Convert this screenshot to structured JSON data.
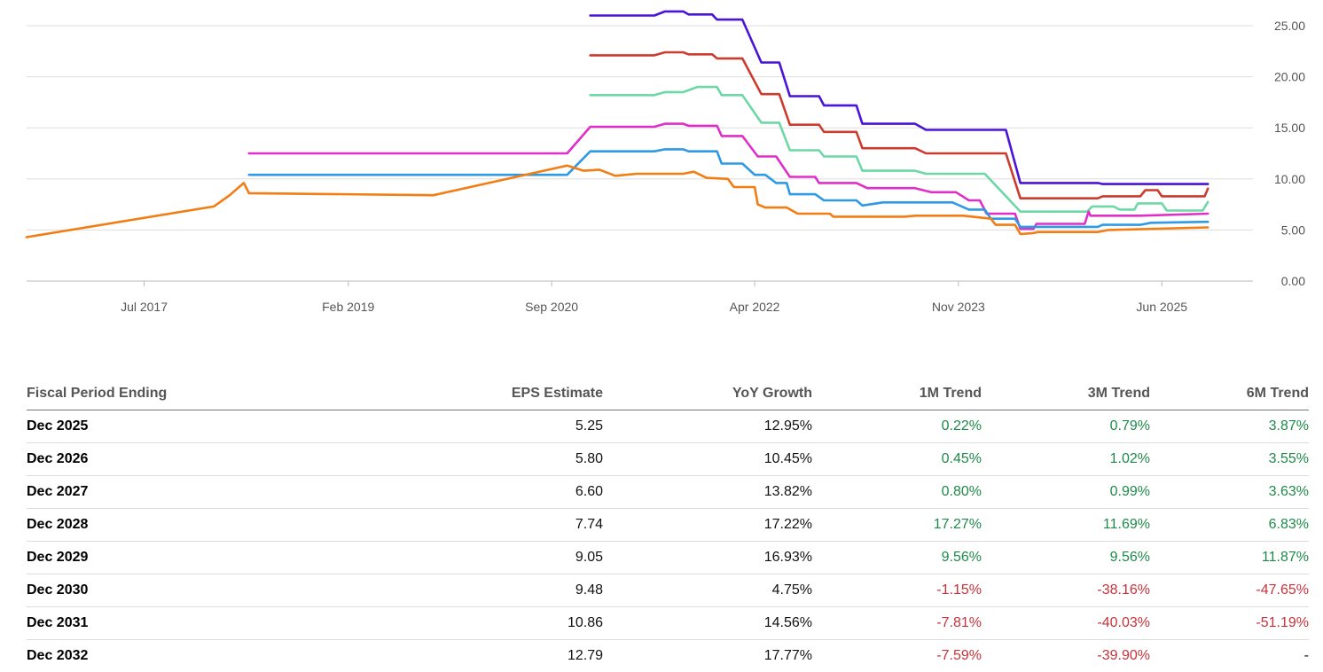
{
  "chart_data": {
    "type": "line",
    "x_tick_labels": [
      "Jul 2017",
      "Feb 2019",
      "Sep 2020",
      "Apr 2022",
      "Nov 2023",
      "Jun 2025"
    ],
    "y_tick_labels": [
      "0.00",
      "5.00",
      "10.00",
      "15.00",
      "20.00",
      "25.00"
    ],
    "ylim": [
      0,
      26.5
    ],
    "xlim": [
      "2016-08-01",
      "2026-02-15"
    ],
    "grid": true,
    "y_axis_position": "right",
    "series": [
      {
        "color": "#4a14d8",
        "points": [
          [
            "2020-12-20",
            26.0
          ],
          [
            "2021-06-20",
            26.0
          ],
          [
            "2021-07-20",
            26.4
          ],
          [
            "2021-09-10",
            26.4
          ],
          [
            "2021-09-25",
            26.1
          ],
          [
            "2021-12-01",
            26.1
          ],
          [
            "2021-12-15",
            25.6
          ],
          [
            "2022-02-25",
            25.6
          ],
          [
            "2022-04-20",
            21.4
          ],
          [
            "2022-06-10",
            21.4
          ],
          [
            "2022-07-10",
            18.1
          ],
          [
            "2022-10-01",
            18.1
          ],
          [
            "2022-10-15",
            17.2
          ],
          [
            "2023-01-15",
            17.2
          ],
          [
            "2023-02-01",
            15.4
          ],
          [
            "2023-07-01",
            15.4
          ],
          [
            "2023-08-01",
            14.8
          ],
          [
            "2024-03-15",
            14.8
          ],
          [
            "2024-04-25",
            9.6
          ],
          [
            "2024-12-01",
            9.6
          ],
          [
            "2024-12-15",
            9.5
          ],
          [
            "2025-10-10",
            9.5
          ]
        ]
      },
      {
        "color": "#cc3c2e",
        "points": [
          [
            "2020-12-20",
            22.1
          ],
          [
            "2021-06-20",
            22.1
          ],
          [
            "2021-07-20",
            22.4
          ],
          [
            "2021-09-10",
            22.4
          ],
          [
            "2021-09-25",
            22.2
          ],
          [
            "2021-12-01",
            22.2
          ],
          [
            "2021-12-15",
            21.8
          ],
          [
            "2022-02-25",
            21.8
          ],
          [
            "2022-04-20",
            18.3
          ],
          [
            "2022-06-10",
            18.3
          ],
          [
            "2022-07-10",
            15.3
          ],
          [
            "2022-10-01",
            15.3
          ],
          [
            "2022-10-15",
            14.6
          ],
          [
            "2023-01-15",
            14.6
          ],
          [
            "2023-02-01",
            13.0
          ],
          [
            "2023-07-01",
            13.0
          ],
          [
            "2023-08-01",
            12.5
          ],
          [
            "2024-03-15",
            12.5
          ],
          [
            "2024-04-25",
            8.1
          ],
          [
            "2024-12-01",
            8.1
          ],
          [
            "2024-12-15",
            8.3
          ],
          [
            "2025-04-01",
            8.3
          ],
          [
            "2025-04-15",
            8.9
          ],
          [
            "2025-05-20",
            8.9
          ],
          [
            "2025-06-01",
            8.3
          ],
          [
            "2025-10-01",
            8.3
          ],
          [
            "2025-10-10",
            9.05
          ]
        ]
      },
      {
        "color": "#6dd8a6",
        "points": [
          [
            "2020-12-20",
            18.2
          ],
          [
            "2021-06-20",
            18.2
          ],
          [
            "2021-07-20",
            18.5
          ],
          [
            "2021-09-10",
            18.5
          ],
          [
            "2021-10-20",
            19.0
          ],
          [
            "2021-12-15",
            19.0
          ],
          [
            "2021-12-28",
            18.2
          ],
          [
            "2022-02-25",
            18.2
          ],
          [
            "2022-04-20",
            15.5
          ],
          [
            "2022-06-10",
            15.5
          ],
          [
            "2022-07-10",
            12.8
          ],
          [
            "2022-10-01",
            12.8
          ],
          [
            "2022-10-15",
            12.2
          ],
          [
            "2023-01-15",
            12.2
          ],
          [
            "2023-02-01",
            10.8
          ],
          [
            "2023-07-01",
            10.8
          ],
          [
            "2023-08-01",
            10.5
          ],
          [
            "2024-01-15",
            10.5
          ],
          [
            "2024-04-25",
            6.8
          ],
          [
            "2024-11-01",
            6.8
          ],
          [
            "2024-11-15",
            7.3
          ],
          [
            "2025-01-15",
            7.3
          ],
          [
            "2025-02-01",
            7.0
          ],
          [
            "2025-03-15",
            7.0
          ],
          [
            "2025-03-25",
            7.6
          ],
          [
            "2025-06-01",
            7.6
          ],
          [
            "2025-06-15",
            6.9
          ],
          [
            "2025-09-25",
            6.9
          ],
          [
            "2025-10-10",
            7.74
          ]
        ]
      },
      {
        "color": "#e02ec8",
        "points": [
          [
            "2018-04-25",
            12.5
          ],
          [
            "2020-10-15",
            12.5
          ],
          [
            "2020-12-20",
            15.1
          ],
          [
            "2021-06-20",
            15.1
          ],
          [
            "2021-07-20",
            15.4
          ],
          [
            "2021-09-10",
            15.4
          ],
          [
            "2021-09-25",
            15.2
          ],
          [
            "2021-12-15",
            15.2
          ],
          [
            "2021-12-28",
            14.2
          ],
          [
            "2022-02-25",
            14.2
          ],
          [
            "2022-04-10",
            12.2
          ],
          [
            "2022-06-01",
            12.2
          ],
          [
            "2022-07-10",
            10.2
          ],
          [
            "2022-09-20",
            10.2
          ],
          [
            "2022-10-01",
            9.6
          ],
          [
            "2023-01-15",
            9.6
          ],
          [
            "2023-02-15",
            9.1
          ],
          [
            "2023-07-01",
            9.1
          ],
          [
            "2023-08-15",
            8.7
          ],
          [
            "2023-10-25",
            8.7
          ],
          [
            "2023-12-01",
            7.9
          ],
          [
            "2024-01-01",
            7.9
          ],
          [
            "2024-01-20",
            6.6
          ],
          [
            "2024-04-10",
            6.6
          ],
          [
            "2024-04-25",
            5.1
          ],
          [
            "2024-06-01",
            5.1
          ],
          [
            "2024-06-10",
            5.6
          ],
          [
            "2024-10-25",
            5.6
          ],
          [
            "2024-11-05",
            6.8
          ],
          [
            "2024-11-10",
            6.4
          ],
          [
            "2025-04-01",
            6.4
          ],
          [
            "2025-10-10",
            6.6
          ]
        ]
      },
      {
        "color": "#2e9ae6",
        "points": [
          [
            "2018-04-25",
            10.4
          ],
          [
            "2020-10-15",
            10.4
          ],
          [
            "2020-12-20",
            12.7
          ],
          [
            "2021-06-20",
            12.7
          ],
          [
            "2021-07-20",
            12.9
          ],
          [
            "2021-09-10",
            12.9
          ],
          [
            "2021-09-25",
            12.7
          ],
          [
            "2021-12-15",
            12.7
          ],
          [
            "2021-12-28",
            11.5
          ],
          [
            "2022-02-25",
            11.5
          ],
          [
            "2022-04-01",
            10.4
          ],
          [
            "2022-05-01",
            10.4
          ],
          [
            "2022-06-01",
            9.6
          ],
          [
            "2022-07-01",
            9.6
          ],
          [
            "2022-07-10",
            8.5
          ],
          [
            "2022-09-20",
            8.5
          ],
          [
            "2022-10-15",
            7.9
          ],
          [
            "2023-01-15",
            7.9
          ],
          [
            "2023-02-01",
            7.4
          ],
          [
            "2023-04-01",
            7.7
          ],
          [
            "2023-10-15",
            7.7
          ],
          [
            "2023-12-01",
            7.0
          ],
          [
            "2024-01-15",
            7.0
          ],
          [
            "2024-02-01",
            6.1
          ],
          [
            "2024-04-10",
            6.1
          ],
          [
            "2024-04-25",
            5.3
          ],
          [
            "2024-12-01",
            5.3
          ],
          [
            "2024-12-15",
            5.5
          ],
          [
            "2025-04-01",
            5.5
          ],
          [
            "2025-05-01",
            5.7
          ],
          [
            "2025-10-10",
            5.8
          ]
        ]
      },
      {
        "color": "#f27d12",
        "points": [
          [
            "2016-08-01",
            4.3
          ],
          [
            "2018-01-15",
            7.3
          ],
          [
            "2018-03-01",
            8.4
          ],
          [
            "2018-04-10",
            9.6
          ],
          [
            "2018-04-25",
            8.6
          ],
          [
            "2019-10-01",
            8.4
          ],
          [
            "2020-10-15",
            11.3
          ],
          [
            "2020-12-01",
            10.8
          ],
          [
            "2021-01-15",
            10.9
          ],
          [
            "2021-03-01",
            10.3
          ],
          [
            "2021-05-01",
            10.5
          ],
          [
            "2021-09-10",
            10.5
          ],
          [
            "2021-10-10",
            10.7
          ],
          [
            "2021-11-15",
            10.1
          ],
          [
            "2022-01-15",
            10.0
          ],
          [
            "2022-02-01",
            9.2
          ],
          [
            "2022-04-01",
            9.2
          ],
          [
            "2022-04-10",
            7.5
          ],
          [
            "2022-05-01",
            7.2
          ],
          [
            "2022-07-01",
            7.2
          ],
          [
            "2022-08-01",
            6.6
          ],
          [
            "2022-11-01",
            6.6
          ],
          [
            "2022-11-10",
            6.3
          ],
          [
            "2023-06-01",
            6.3
          ],
          [
            "2023-07-01",
            6.4
          ],
          [
            "2023-11-15",
            6.4
          ],
          [
            "2024-02-01",
            6.1
          ],
          [
            "2024-02-15",
            5.5
          ],
          [
            "2024-04-10",
            5.5
          ],
          [
            "2024-04-25",
            4.6
          ],
          [
            "2024-06-01",
            4.7
          ],
          [
            "2024-06-15",
            4.8
          ],
          [
            "2024-12-01",
            4.8
          ],
          [
            "2025-01-01",
            5.0
          ],
          [
            "2025-10-10",
            5.25
          ]
        ]
      }
    ]
  },
  "table": {
    "headers": [
      "Fiscal Period Ending",
      "EPS Estimate",
      "YoY Growth",
      "1M Trend",
      "3M Trend",
      "6M Trend"
    ],
    "rows": [
      [
        "Dec 2025",
        "5.25",
        "12.95%",
        "0.22%",
        "0.79%",
        "3.87%"
      ],
      [
        "Dec 2026",
        "5.80",
        "10.45%",
        "0.45%",
        "1.02%",
        "3.55%"
      ],
      [
        "Dec 2027",
        "6.60",
        "13.82%",
        "0.80%",
        "0.99%",
        "3.63%"
      ],
      [
        "Dec 2028",
        "7.74",
        "17.22%",
        "17.27%",
        "11.69%",
        "6.83%"
      ],
      [
        "Dec 2029",
        "9.05",
        "16.93%",
        "9.56%",
        "9.56%",
        "11.87%"
      ],
      [
        "Dec 2030",
        "9.48",
        "4.75%",
        "-1.15%",
        "-38.16%",
        "-47.65%"
      ],
      [
        "Dec 2031",
        "10.86",
        "14.56%",
        "-7.81%",
        "-40.03%",
        "-51.19%"
      ],
      [
        "Dec 2032",
        "12.79",
        "17.77%",
        "-7.59%",
        "-39.90%",
        "-"
      ]
    ]
  }
}
